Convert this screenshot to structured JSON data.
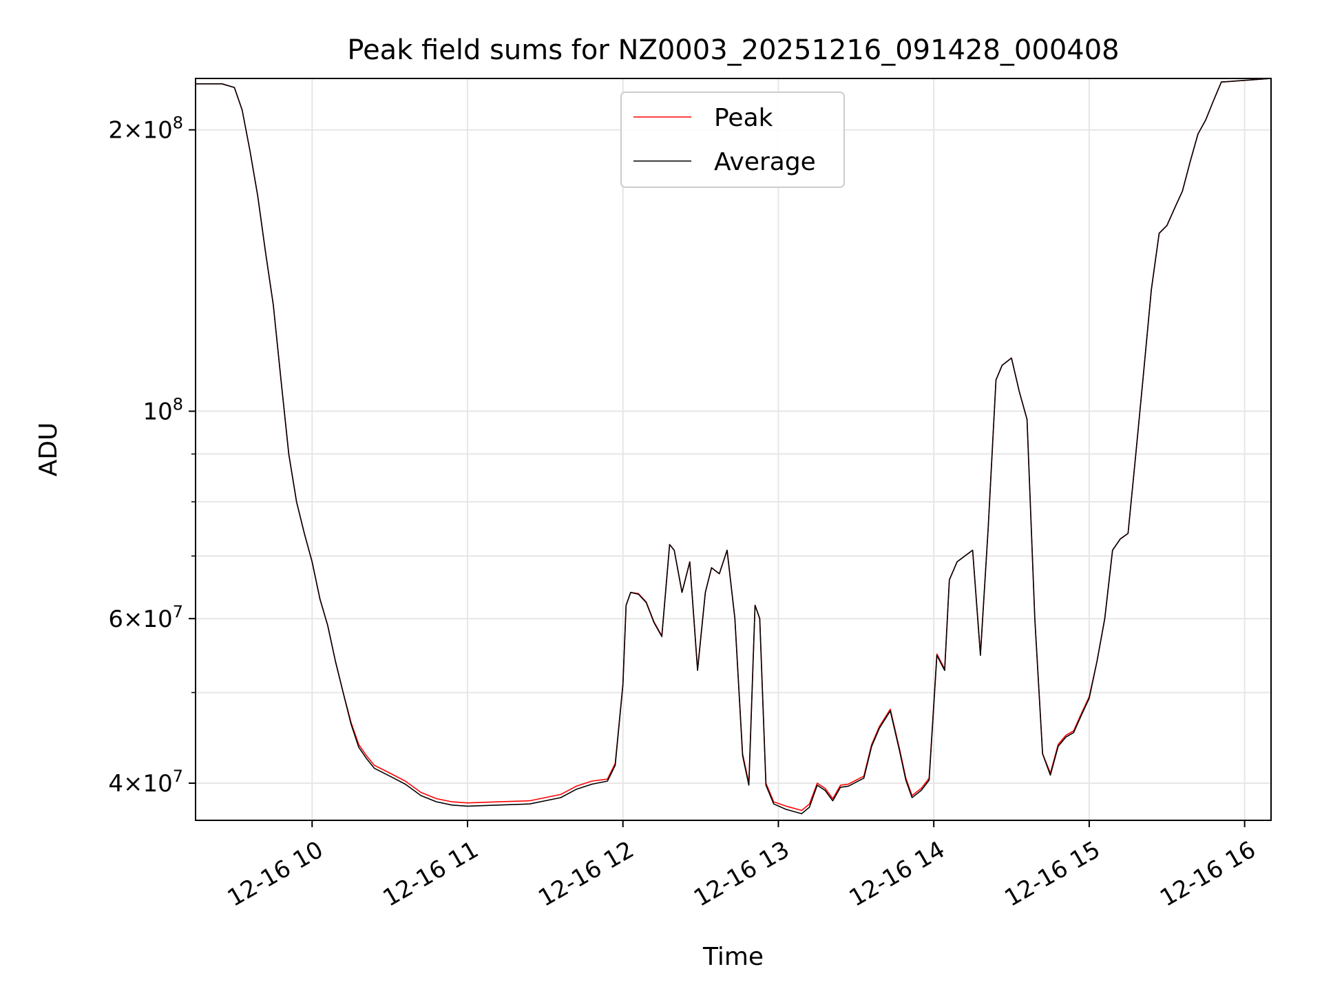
{
  "chart_data": {
    "type": "line",
    "title": "Peak field sums for NZ0003_20251216_091428_000408",
    "xlabel": "Time",
    "ylabel": "ADU",
    "yscale": "log",
    "ylim": [
      36500000,
      227000000
    ],
    "xlim": [
      9.25,
      16.17
    ],
    "x_unit": "hour of day (2025-12-16)",
    "grid": true,
    "legend_position": "upper center",
    "x_ticks": [
      {
        "value": 10,
        "label": "12-16 10"
      },
      {
        "value": 11,
        "label": "12-16 11"
      },
      {
        "value": 12,
        "label": "12-16 12"
      },
      {
        "value": 13,
        "label": "12-16 13"
      },
      {
        "value": 14,
        "label": "12-16 14"
      },
      {
        "value": 15,
        "label": "12-16 15"
      },
      {
        "value": 16,
        "label": "12-16 16"
      }
    ],
    "y_ticks": [
      {
        "value": 40000000,
        "base": "4",
        "exp": "7"
      },
      {
        "value": 60000000,
        "base": "6",
        "exp": "7"
      },
      {
        "value": 100000000,
        "base": "",
        "exp": "8"
      },
      {
        "value": 200000000,
        "base": "2",
        "exp": "8"
      }
    ],
    "y_minor_ticks": [
      50000000,
      70000000,
      80000000,
      90000000
    ],
    "x": [
      9.25,
      9.42,
      9.5,
      9.55,
      9.6,
      9.65,
      9.7,
      9.75,
      9.8,
      9.85,
      9.9,
      9.95,
      10.0,
      10.05,
      10.1,
      10.15,
      10.2,
      10.25,
      10.3,
      10.35,
      10.4,
      10.5,
      10.6,
      10.7,
      10.8,
      10.9,
      11.0,
      11.2,
      11.4,
      11.6,
      11.7,
      11.8,
      11.9,
      11.95,
      12.0,
      12.02,
      12.05,
      12.1,
      12.15,
      12.2,
      12.25,
      12.3,
      12.33,
      12.38,
      12.43,
      12.48,
      12.53,
      12.57,
      12.62,
      12.67,
      12.72,
      12.77,
      12.81,
      12.85,
      12.88,
      12.92,
      12.97,
      13.05,
      13.15,
      13.2,
      13.25,
      13.3,
      13.35,
      13.4,
      13.45,
      13.55,
      13.6,
      13.65,
      13.72,
      13.78,
      13.82,
      13.86,
      13.92,
      13.97,
      14.02,
      14.07,
      14.1,
      14.15,
      14.2,
      14.25,
      14.3,
      14.35,
      14.4,
      14.44,
      14.5,
      14.55,
      14.6,
      14.65,
      14.7,
      14.75,
      14.8,
      14.85,
      14.9,
      14.95,
      15.0,
      15.05,
      15.1,
      15.15,
      15.2,
      15.25,
      15.3,
      15.35,
      15.4,
      15.45,
      15.5,
      15.55,
      15.6,
      15.65,
      15.7,
      15.75,
      15.8,
      15.85,
      16.17
    ],
    "series": [
      {
        "name": "Peak",
        "color": "#ff0000",
        "values": [
          224000000,
          224000000,
          222000000,
          210000000,
          190000000,
          170000000,
          148000000,
          130000000,
          108000000,
          90000000,
          80000000,
          74000000,
          69000000,
          63000000,
          59000000,
          54000000,
          50000000,
          46500000,
          44000000,
          42800000,
          41800000,
          41000000,
          40200000,
          39100000,
          38500000,
          38200000,
          38100000,
          38200000,
          38300000,
          38900000,
          39700000,
          40200000,
          40400000,
          42000000,
          51000000,
          62000000,
          64000000,
          63800000,
          62500000,
          59500000,
          57500000,
          72000000,
          71000000,
          64000000,
          69000000,
          53000000,
          64000000,
          68000000,
          67000000,
          71000000,
          60000000,
          43000000,
          40000000,
          62000000,
          60000000,
          40000000,
          38200000,
          37800000,
          37400000,
          38000000,
          40000000,
          39500000,
          38500000,
          39800000,
          39900000,
          40700000,
          44000000,
          46000000,
          48000000,
          43500000,
          40500000,
          38800000,
          39500000,
          40500000,
          55000000,
          53000000,
          66000000,
          69000000,
          70000000,
          71000000,
          55000000,
          75000000,
          108000000,
          112000000,
          114000000,
          105000000,
          98000000,
          60000000,
          43000000,
          41000000,
          44000000,
          45000000,
          45500000,
          47500000,
          49500000,
          54000000,
          60000000,
          71000000,
          73000000,
          74000000,
          90000000,
          110000000,
          135000000,
          155000000,
          158000000,
          165000000,
          172000000,
          185000000,
          198000000,
          205000000,
          215000000,
          225000000,
          227000000
        ]
      },
      {
        "name": "Average",
        "color": "#000000",
        "values": [
          224000000,
          224000000,
          222000000,
          210000000,
          190000000,
          170000000,
          148000000,
          130000000,
          108000000,
          90000000,
          80000000,
          74000000,
          69000000,
          63000000,
          59000000,
          54000000,
          50000000,
          46300000,
          43700000,
          42500000,
          41500000,
          40700000,
          39900000,
          38800000,
          38200000,
          37900000,
          37800000,
          37900000,
          38000000,
          38600000,
          39400000,
          39900000,
          40200000,
          41800000,
          51000000,
          62000000,
          64000000,
          63700000,
          62400000,
          59400000,
          57400000,
          72000000,
          71000000,
          64000000,
          69000000,
          52800000,
          64000000,
          68000000,
          67000000,
          71000000,
          60000000,
          42800000,
          39800000,
          62000000,
          60000000,
          39800000,
          38000000,
          37500000,
          37100000,
          37700000,
          39800000,
          39300000,
          38300000,
          39600000,
          39700000,
          40500000,
          43800000,
          45800000,
          47800000,
          43300000,
          40300000,
          38600000,
          39300000,
          40300000,
          54800000,
          52800000,
          66000000,
          69000000,
          70000000,
          71000000,
          54800000,
          75000000,
          108000000,
          112000000,
          114000000,
          105000000,
          98000000,
          60000000,
          43000000,
          40800000,
          43800000,
          44800000,
          45300000,
          47300000,
          49300000,
          54000000,
          60000000,
          71000000,
          73000000,
          74000000,
          90000000,
          110000000,
          135000000,
          155000000,
          158000000,
          165000000,
          172000000,
          185000000,
          198000000,
          205000000,
          215000000,
          225000000,
          227000000
        ]
      }
    ]
  }
}
